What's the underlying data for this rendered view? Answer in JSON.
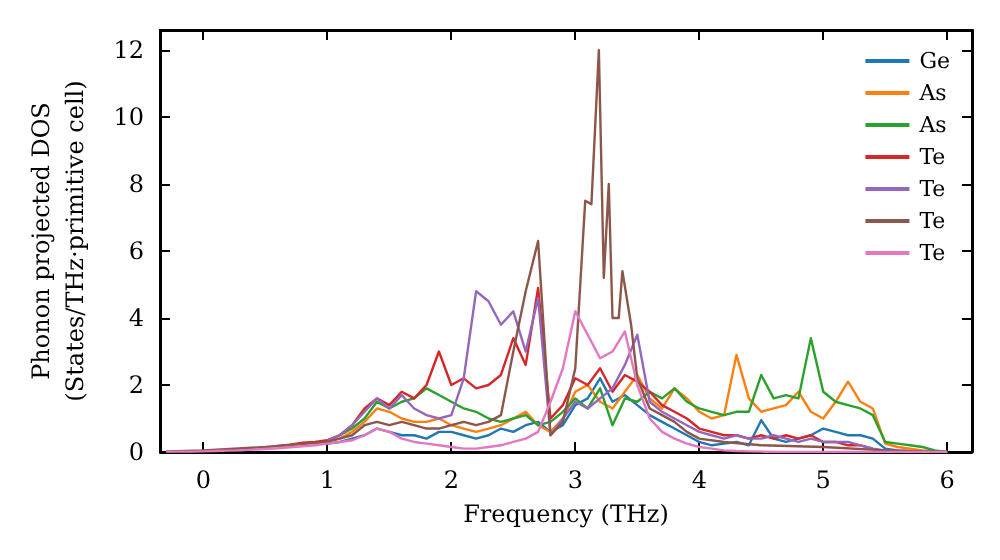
{
  "chart_data": {
    "type": "line",
    "xlabel": "Frequency (THz)",
    "ylabel": "Phonon projected DOS\n(States/THz·primitive cell)",
    "xlim": [
      -0.35,
      6.2
    ],
    "ylim": [
      0,
      12.6
    ],
    "xticks": [
      0,
      1,
      2,
      3,
      4,
      5,
      6
    ],
    "yticks": [
      0,
      2,
      4,
      6,
      8,
      10,
      12
    ],
    "grid": false,
    "legend": "top right",
    "marker": "none",
    "line_style": "solid",
    "x": [
      -0.3,
      -0.2,
      -0.1,
      0,
      0.1,
      0.2,
      0.3,
      0.4,
      0.5,
      0.6,
      0.7,
      0.8,
      0.9,
      1.0,
      1.1,
      1.2,
      1.3,
      1.4,
      1.5,
      1.6,
      1.7,
      1.8,
      1.9,
      2.0,
      2.1,
      2.2,
      2.3,
      2.4,
      2.5,
      2.6,
      2.7,
      2.8,
      2.9,
      3.0,
      3.1,
      3.2,
      3.3,
      3.4,
      3.5,
      3.6,
      3.7,
      3.8,
      3.9,
      4.0,
      4.1,
      4.2,
      4.3,
      4.4,
      4.5,
      4.6,
      4.7,
      4.8,
      4.9,
      5.0,
      5.1,
      5.2,
      5.3,
      5.4,
      5.5,
      5.6,
      5.7,
      5.8,
      5.9,
      6.0
    ],
    "series": [
      {
        "name": "Ge",
        "color": "#1f77b4",
        "values": [
          null,
          null,
          null,
          null,
          null,
          null,
          null,
          null,
          null,
          null,
          null,
          null,
          null,
          0.25,
          0.3,
          0.4,
          0.5,
          0.7,
          0.6,
          0.5,
          0.5,
          0.4,
          0.6,
          0.6,
          0.5,
          0.4,
          0.5,
          0.7,
          0.6,
          0.8,
          0.9,
          0.6,
          0.8,
          1.4,
          1.6,
          2.2,
          1.5,
          1.7,
          1.4,
          1.1,
          0.9,
          0.7,
          0.5,
          0.3,
          0.2,
          0.25,
          0.3,
          0.2,
          0.95,
          0.4,
          0.3,
          0.4,
          0.5,
          0.7,
          0.6,
          0.5,
          0.5,
          0.4,
          0.1,
          0.05,
          0.03,
          null,
          null,
          null
        ]
      },
      {
        "name": "As",
        "color": "#ff7f0e",
        "values": [
          null,
          null,
          null,
          null,
          null,
          null,
          null,
          null,
          null,
          null,
          null,
          null,
          null,
          0.35,
          0.4,
          0.6,
          0.9,
          1.3,
          1.2,
          1.0,
          0.9,
          0.9,
          1.0,
          0.8,
          0.7,
          0.6,
          0.7,
          0.8,
          1.0,
          1.2,
          0.8,
          0.6,
          1.0,
          1.8,
          2.0,
          1.5,
          1.3,
          1.8,
          2.3,
          1.6,
          1.3,
          1.9,
          1.6,
          1.2,
          1.0,
          1.1,
          2.9,
          1.6,
          1.2,
          1.3,
          1.4,
          1.8,
          1.2,
          1.0,
          1.5,
          2.1,
          1.5,
          1.3,
          0.25,
          0.15,
          0.1,
          0.05,
          0.02,
          0
        ]
      },
      {
        "name": "As",
        "color": "#2ca02c",
        "values": [
          null,
          null,
          null,
          null,
          null,
          null,
          null,
          null,
          null,
          null,
          null,
          null,
          null,
          0.35,
          0.5,
          0.7,
          1.0,
          1.5,
          1.3,
          1.5,
          1.6,
          1.9,
          1.7,
          1.5,
          1.3,
          1.2,
          1.0,
          0.9,
          1.0,
          1.1,
          0.8,
          0.9,
          1.2,
          1.6,
          1.3,
          1.9,
          0.8,
          1.6,
          1.5,
          1.8,
          1.6,
          1.9,
          1.5,
          1.3,
          1.2,
          1.1,
          1.2,
          1.2,
          2.3,
          1.6,
          1.7,
          1.6,
          3.4,
          1.8,
          1.5,
          1.4,
          1.3,
          1.1,
          0.3,
          0.25,
          0.2,
          0.15,
          0.05,
          0
        ]
      },
      {
        "name": "Te",
        "color": "#d62728",
        "values": [
          null,
          null,
          null,
          null,
          null,
          null,
          null,
          null,
          null,
          0.18,
          0.22,
          0.28,
          0.3,
          0.35,
          0.5,
          0.8,
          1.3,
          1.6,
          1.4,
          1.8,
          1.6,
          2.0,
          3.0,
          2.0,
          2.2,
          1.9,
          2.0,
          2.3,
          3.4,
          2.6,
          4.9,
          1.0,
          1.4,
          2.2,
          2.0,
          2.5,
          1.8,
          2.3,
          2.1,
          1.8,
          1.4,
          1.2,
          1.0,
          0.7,
          0.6,
          0.5,
          0.5,
          0.4,
          0.5,
          0.4,
          0.5,
          0.4,
          0.5,
          0.3,
          0.3,
          0.2,
          0.2,
          0.1,
          null,
          null,
          null,
          null,
          null,
          null
        ]
      },
      {
        "name": "Te",
        "color": "#9467bd",
        "values": [
          null,
          null,
          null,
          null,
          null,
          null,
          null,
          null,
          null,
          null,
          null,
          null,
          null,
          0.35,
          0.5,
          0.8,
          1.2,
          1.6,
          1.3,
          1.7,
          1.3,
          1.1,
          1.0,
          1.1,
          2.2,
          4.8,
          4.5,
          3.8,
          4.2,
          3.0,
          4.6,
          0.5,
          1.0,
          1.5,
          1.3,
          1.6,
          1.9,
          2.6,
          3.5,
          1.5,
          1.2,
          1.0,
          0.8,
          0.6,
          0.5,
          0.4,
          0.5,
          0.4,
          0.4,
          0.5,
          0.4,
          0.3,
          0.4,
          0.3,
          0.3,
          0.3,
          0.2,
          0.1,
          0.05,
          0.03,
          0.02,
          null,
          null,
          null
        ]
      },
      {
        "name": "Te",
        "color": "#8c564b",
        "x": [
          -0.3,
          0,
          0.5,
          1.0,
          1.1,
          1.2,
          1.3,
          1.4,
          1.5,
          1.6,
          1.7,
          1.8,
          1.9,
          2.0,
          2.1,
          2.2,
          2.3,
          2.4,
          2.5,
          2.6,
          2.7,
          2.8,
          2.9,
          3.0,
          3.08,
          3.13,
          3.19,
          3.23,
          3.27,
          3.3,
          3.35,
          3.38,
          3.45,
          3.5,
          3.6,
          3.7,
          3.8,
          3.9,
          4.0,
          4.2,
          4.5,
          5.0,
          5.5,
          6.0
        ],
        "values": [
          0.02,
          0.05,
          0.15,
          0.3,
          0.4,
          0.5,
          0.8,
          0.9,
          0.8,
          0.9,
          0.8,
          0.7,
          0.7,
          0.8,
          0.9,
          0.8,
          0.9,
          1.1,
          3.0,
          4.8,
          6.3,
          0.5,
          0.9,
          2.5,
          7.5,
          7.4,
          12.0,
          5.2,
          8.0,
          4.0,
          4.0,
          5.4,
          3.8,
          2.2,
          1.3,
          1.1,
          0.9,
          0.6,
          0.4,
          0.3,
          0.2,
          0.15,
          0.05,
          0
        ]
      },
      {
        "name": "Te",
        "color": "#e377c2",
        "values": [
          0.01,
          0.01,
          0.01,
          0.02,
          0.03,
          0.04,
          0.05,
          0.07,
          0.09,
          0.11,
          0.14,
          0.17,
          0.2,
          0.25,
          0.3,
          0.35,
          0.5,
          0.7,
          0.6,
          0.4,
          0.3,
          0.25,
          0.2,
          0.15,
          0.1,
          0.1,
          0.15,
          0.2,
          0.3,
          0.4,
          0.6,
          1.5,
          2.5,
          4.2,
          3.5,
          2.8,
          3.0,
          3.6,
          2.0,
          1.0,
          0.6,
          0.4,
          0.25,
          0.15,
          0.1,
          0.05,
          0.03,
          0.02,
          0.01,
          0,
          0,
          0,
          0,
          0,
          0,
          0,
          0,
          0,
          0,
          0,
          0,
          0,
          0,
          0
        ]
      }
    ]
  }
}
